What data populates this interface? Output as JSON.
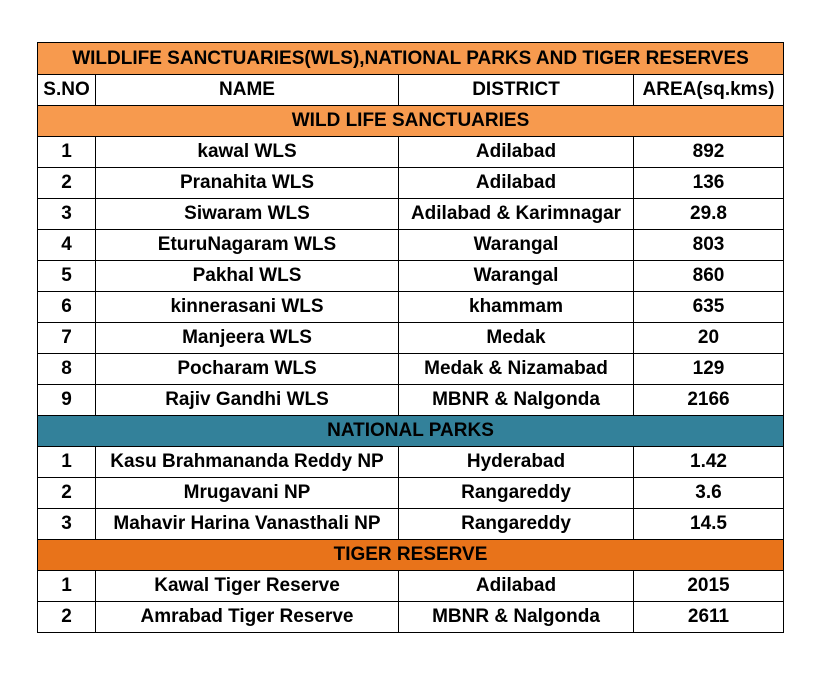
{
  "title": "WILDLIFE SANCTUARIES(WLS),NATIONAL PARKS AND TIGER RESERVES",
  "colors": {
    "title_bg": "#F79A4E",
    "wls_bg": "#F79A4E",
    "np_bg": "#33819A",
    "tiger_bg": "#E8731A",
    "row_bg": "#FFFFFF"
  },
  "headers": {
    "sno": "S.NO",
    "name": "NAME",
    "district": "DISTRICT",
    "area": "AREA(sq.kms)"
  },
  "sections": [
    {
      "title": "WILD LIFE SANCTUARIES",
      "rows": [
        {
          "sno": "1",
          "name": "kawal WLS",
          "district": "Adilabad",
          "area": "892"
        },
        {
          "sno": "2",
          "name": "Pranahita WLS",
          "district": "Adilabad",
          "area": "136"
        },
        {
          "sno": "3",
          "name": "Siwaram WLS",
          "district": "Adilabad & Karimnagar",
          "area": "29.8"
        },
        {
          "sno": "4",
          "name": "EturuNagaram WLS",
          "district": "Warangal",
          "area": "803"
        },
        {
          "sno": "5",
          "name": "Pakhal WLS",
          "district": "Warangal",
          "area": "860"
        },
        {
          "sno": "6",
          "name": "kinnerasani WLS",
          "district": "khammam",
          "area": "635"
        },
        {
          "sno": "7",
          "name": "Manjeera WLS",
          "district": "Medak",
          "area": "20"
        },
        {
          "sno": "8",
          "name": "Pocharam WLS",
          "district": "Medak & Nizamabad",
          "area": "129"
        },
        {
          "sno": "9",
          "name": "Rajiv Gandhi WLS",
          "district": "MBNR & Nalgonda",
          "area": "2166"
        }
      ]
    },
    {
      "title": "NATIONAL PARKS",
      "rows": [
        {
          "sno": "1",
          "name": "Kasu Brahmananda Reddy NP",
          "district": "Hyderabad",
          "area": "1.42"
        },
        {
          "sno": "2",
          "name": "Mrugavani NP",
          "district": "Rangareddy",
          "area": "3.6"
        },
        {
          "sno": "3",
          "name": "Mahavir Harina Vanasthali NP",
          "district": "Rangareddy",
          "area": "14.5"
        }
      ]
    },
    {
      "title": "TIGER RESERVE",
      "rows": [
        {
          "sno": "1",
          "name": "Kawal Tiger Reserve",
          "district": "Adilabad",
          "area": "2015"
        },
        {
          "sno": "2",
          "name": "Amrabad Tiger Reserve",
          "district": "MBNR & Nalgonda",
          "area": "2611"
        }
      ]
    }
  ]
}
